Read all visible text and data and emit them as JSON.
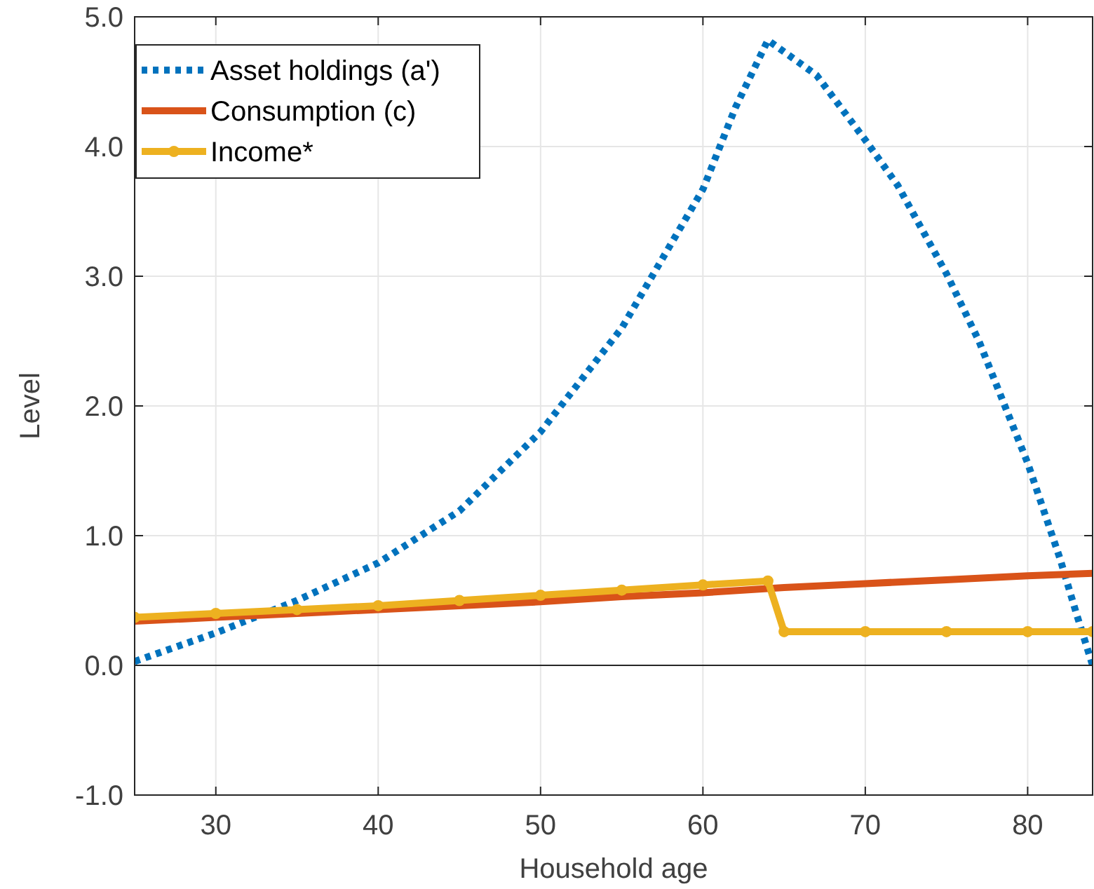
{
  "chart_data": {
    "type": "line",
    "xlabel": "Household age",
    "ylabel": "Level",
    "xlim": [
      25,
      84
    ],
    "xticks": [
      30,
      40,
      50,
      60,
      70,
      80
    ],
    "ylim": [
      -1,
      5
    ],
    "yticks": [
      {
        "value": -1,
        "label": "-1.0"
      },
      {
        "value": 0,
        "label": "0.0"
      },
      {
        "value": 1,
        "label": "1.0"
      },
      {
        "value": 2,
        "label": "2.0"
      },
      {
        "value": 3,
        "label": "3.0"
      },
      {
        "value": 4,
        "label": "4.0"
      },
      {
        "value": 5,
        "label": "5.0"
      }
    ],
    "grid": true,
    "legend": "top left",
    "ref_lines": [
      {
        "axis": "y",
        "value": 0,
        "color": "#262626"
      }
    ],
    "series": [
      {
        "name": "Asset holdings (a')",
        "color": "#0072bd",
        "line_style": "dotted",
        "marker": "none",
        "x": [
          25,
          30,
          35,
          40,
          45,
          50,
          55,
          60,
          62,
          64,
          67,
          70,
          72,
          75,
          77,
          80,
          82,
          83,
          84
        ],
        "values": [
          0.03,
          0.25,
          0.5,
          0.79,
          1.19,
          1.8,
          2.6,
          3.67,
          4.3,
          4.82,
          4.55,
          4.05,
          3.7,
          3.02,
          2.5,
          1.56,
          0.82,
          0.4,
          0
        ]
      },
      {
        "name": "Consumption (c)",
        "color": "#d95319",
        "line_style": "solid",
        "marker": "none",
        "x": [
          25,
          30,
          35,
          40,
          45,
          50,
          55,
          60,
          65,
          70,
          75,
          80,
          84
        ],
        "values": [
          0.34,
          0.37,
          0.4,
          0.43,
          0.46,
          0.49,
          0.53,
          0.56,
          0.6,
          0.63,
          0.66,
          0.69,
          0.71
        ]
      },
      {
        "name": "Income*",
        "color": "#edb120",
        "line_style": "solid",
        "marker": "circle",
        "x": [
          25,
          30,
          35,
          40,
          45,
          50,
          55,
          60,
          64,
          65,
          70,
          75,
          80,
          84
        ],
        "values": [
          0.37,
          0.4,
          0.43,
          0.46,
          0.5,
          0.54,
          0.58,
          0.62,
          0.65,
          0.26,
          0.26,
          0.26,
          0.26,
          0.26
        ]
      }
    ]
  }
}
